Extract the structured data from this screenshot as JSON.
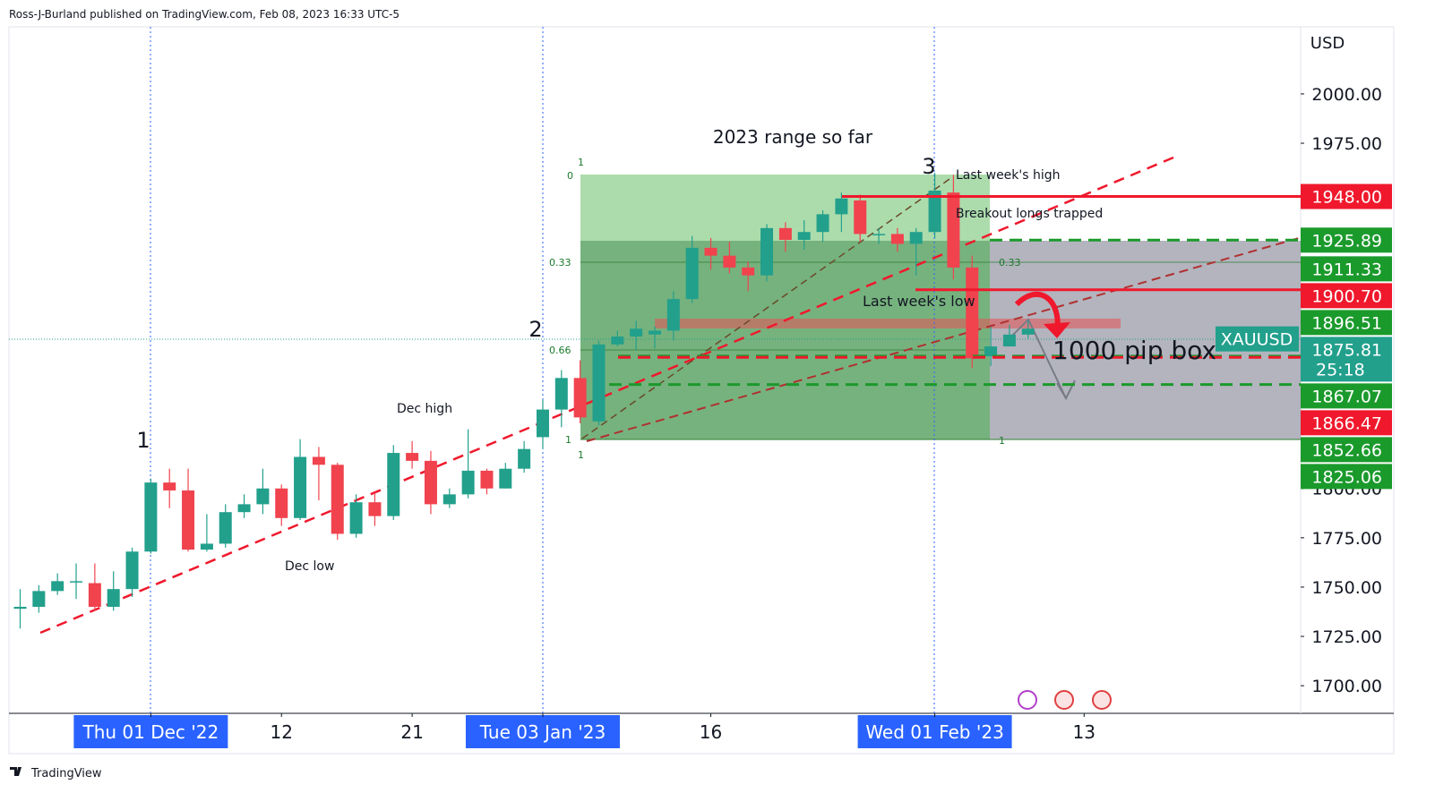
{
  "header": {
    "publisher": "Ross-J-Burland published on TradingView.com, Feb 08, 2023 16:33 UTC-5"
  },
  "footer": {
    "brand": "TradingView"
  },
  "chart_data": {
    "type": "candlestick",
    "currency": "USD",
    "up_color": "#22a08c",
    "down_color": "#f0434e",
    "open": [
      1739,
      1740,
      1748,
      1753,
      1752,
      1740,
      1749,
      1768,
      1803,
      1799,
      1769,
      1772,
      1788,
      1792,
      1800,
      1785,
      1816,
      1812,
      1777,
      1793,
      1786,
      1818,
      1814,
      1792,
      1797,
      1809,
      1800,
      1810,
      1826,
      1840,
      1856,
      1834,
      1873,
      1877,
      1878,
      1880,
      1896,
      1922,
      1918,
      1912,
      1908,
      1932,
      1926,
      1930,
      1939,
      1946,
      1929,
      1929,
      1924,
      1930,
      1950,
      1912,
      1867,
      1872,
      1878
    ],
    "high": [
      1749,
      1751,
      1757,
      1762,
      1762,
      1758,
      1770,
      1805,
      1810,
      1810,
      1787,
      1792,
      1797,
      1810,
      1802,
      1825,
      1821,
      1813,
      1797,
      1798,
      1822,
      1824,
      1819,
      1800,
      1830,
      1810,
      1813,
      1824,
      1845,
      1860,
      1865,
      1875,
      1880,
      1885,
      1882,
      1900,
      1928,
      1927,
      1925,
      1915,
      1934,
      1935,
      1936,
      1941,
      1950,
      1949,
      1932,
      1932,
      1932,
      1960,
      1959,
      1918,
      1882,
      1883,
      1885
    ],
    "low": [
      1729,
      1737,
      1746,
      1744,
      1738,
      1738,
      1745,
      1767,
      1790,
      1768,
      1768,
      1770,
      1785,
      1787,
      1781,
      1784,
      1794,
      1774,
      1775,
      1781,
      1784,
      1810,
      1787,
      1790,
      1795,
      1797,
      1800,
      1808,
      1820,
      1831,
      1833,
      1832,
      1872,
      1870,
      1871,
      1875,
      1894,
      1911,
      1909,
      1900,
      1905,
      1920,
      1921,
      1925,
      1930,
      1925,
      1924,
      1920,
      1908,
      1927,
      1906,
      1861,
      1862,
      1872,
      1876
    ],
    "close": [
      1740,
      1748,
      1753,
      1753,
      1740,
      1749,
      1768,
      1803,
      1799,
      1769,
      1772,
      1788,
      1792,
      1800,
      1785,
      1816,
      1812,
      1777,
      1793,
      1786,
      1818,
      1814,
      1792,
      1797,
      1809,
      1800,
      1810,
      1820,
      1840,
      1856,
      1836,
      1873,
      1877,
      1881,
      1880,
      1896,
      1922,
      1918,
      1912,
      1908,
      1932,
      1926,
      1930,
      1939,
      1947,
      1929,
      1929,
      1924,
      1930,
      1951,
      1912,
      1866,
      1872,
      1878,
      1881
    ],
    "xlim": [
      -0.6,
      68.6
    ],
    "xticks": [
      {
        "value": 7,
        "label": "Thu 01 Dec '22"
      },
      {
        "value": 14,
        "label": "12"
      },
      {
        "value": 21,
        "label": "21"
      },
      {
        "value": 28,
        "label": "Tue 03 Jan '23"
      },
      {
        "value": 37,
        "label": "16"
      },
      {
        "value": 49,
        "label": "Wed 01 Feb '23"
      },
      {
        "value": 57,
        "label": "13"
      }
    ],
    "ylim": [
      1686,
      2034
    ],
    "yticks": [
      {
        "value": 1700,
        "label": "1700.00"
      },
      {
        "value": 1725,
        "label": "1725.00"
      },
      {
        "value": 1750,
        "label": "1750.00"
      },
      {
        "value": 1775,
        "label": "1775.00"
      },
      {
        "value": 1800,
        "label": "1800.00"
      },
      {
        "value": 1975,
        "label": "1975.00"
      },
      {
        "value": 2000,
        "label": "2000.00"
      }
    ],
    "price_tags": [
      {
        "value": 1948,
        "label": "1948.00",
        "color": "#f0182c"
      },
      {
        "value": 1925.89,
        "label": "1925.89",
        "color": "#1b9a2c"
      },
      {
        "value": 1911.33,
        "label": "1911.33",
        "color": "#1b9a2c"
      },
      {
        "value": 1900.7,
        "label": "1900.70",
        "color": "#f0182c"
      },
      {
        "value": 1896.51,
        "label": "1896.51",
        "color": "#1b9a2c"
      },
      {
        "value": 1875.81,
        "label": "1875.81",
        "color": "#22a08c",
        "symbol": "XAUUSD",
        "countdown": "25:18"
      },
      {
        "value": 1867.07,
        "label": "1867.07",
        "color": "#1b9a2c"
      },
      {
        "value": 1866.47,
        "label": "1866.47",
        "color": "#f0182c"
      },
      {
        "value": 1852.66,
        "label": "1852.66",
        "color": "#1b9a2c"
      },
      {
        "value": 1825.06,
        "label": "1825.06",
        "color": "#1b9a2c"
      }
    ],
    "annotations": {
      "range": "2023 range so far",
      "wave1": "1",
      "wave2": "2",
      "wave3": "3",
      "last_week_high": "Last week's high",
      "breakout": "Breakout longs trapped",
      "last_week_low": "Last week's low",
      "pip_box": "1000 pip box",
      "dec_high": "Dec high",
      "dec_low": "Dec low",
      "fib_0": "0",
      "fib_top_1": "1",
      "fib_033": "0.33",
      "fib_066": "0.66",
      "fib_1": "1",
      "fib_1b": "1",
      "fib_right_033": "0.33",
      "fib_right_1": "1"
    }
  }
}
